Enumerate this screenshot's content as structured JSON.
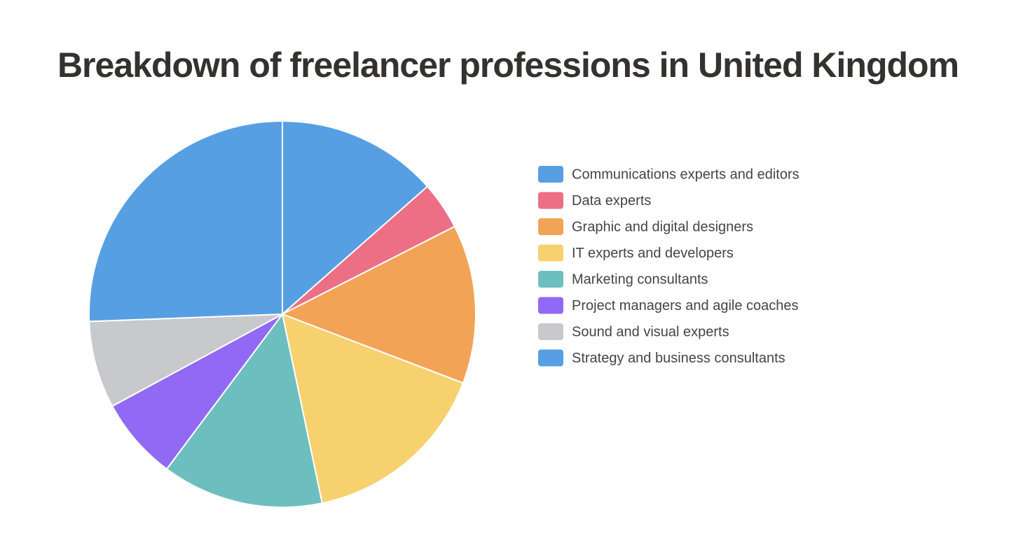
{
  "chart_data": {
    "type": "pie",
    "title": "Breakdown of freelancer professions in United Kingdom",
    "categories": [
      "Communications experts and editors",
      "Data experts",
      "Graphic and digital designers",
      "IT experts and developers",
      "Marketing consultants",
      "Project managers and agile coaches",
      "Sound and visual experts",
      "Strategy and business consultants"
    ],
    "values": [
      13.5,
      4,
      13.3,
      15.9,
      13.5,
      6.9,
      7.3,
      25.6
    ],
    "colors": [
      "#569fe3",
      "#ec6f85",
      "#f2a356",
      "#f6d16e",
      "#6dbfbf",
      "#9169f5",
      "#c8c9cd",
      "#569fe3"
    ],
    "legend": "right"
  }
}
